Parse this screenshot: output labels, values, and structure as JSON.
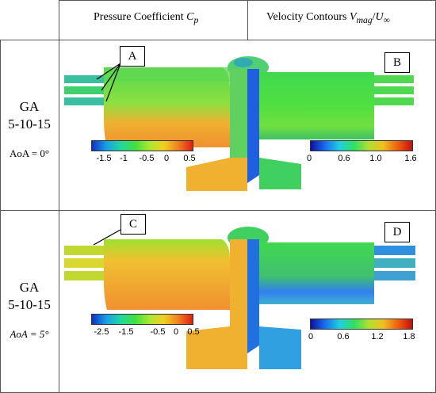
{
  "headers": {
    "cp_prefix": "Pressure Coefficient ",
    "cp_sym": "C",
    "cp_sub": "p",
    "vel_prefix": "Velocity Contours ",
    "vel_sym": "V",
    "vel_sub": "mag",
    "vel_div": "/",
    "vel_u": "U",
    "vel_usub": "∞"
  },
  "rows": [
    {
      "name_line1": "GA",
      "name_line2": "5-10-15",
      "aoa": "AoA = 0°"
    },
    {
      "name_line1": "GA",
      "name_line2": "5-10-15",
      "aoa": "AoA = 5°"
    }
  ],
  "callouts": [
    "A",
    "B",
    "C",
    "D"
  ],
  "colorbars": {
    "cp_row1": [
      "-1.5",
      "-1",
      "-0.5",
      "0",
      "0.5"
    ],
    "vel_row1": [
      "0",
      "0.6",
      "1.0",
      "1.6"
    ],
    "cp_row2": [
      "-2.5",
      "-1.5",
      "-0.5",
      "0",
      "0.5"
    ],
    "vel_row2": [
      "0",
      "0.6",
      "1.2",
      "1.8"
    ]
  },
  "colors": {
    "fuselage_green": "#44d848",
    "fuselage_orange": "#f0a030",
    "vel_blue": "#3080f0"
  }
}
